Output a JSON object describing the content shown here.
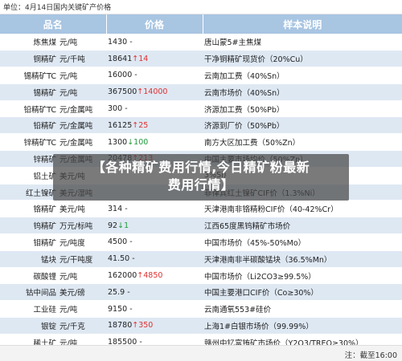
{
  "header": {
    "title": "单位：4月14日国内关键矿产价格"
  },
  "table": {
    "columns": {
      "name": "品名",
      "price": "价格",
      "desc": "样本说明"
    },
    "rows": [
      {
        "name": "炼焦煤",
        "unit": "元/吨",
        "price": "1430",
        "change": "-",
        "direction": "flat",
        "desc": "唐山蒙5#主焦煤"
      },
      {
        "name": "铜精矿",
        "unit": "元/千吨",
        "price": "18641",
        "change": "14",
        "direction": "up",
        "desc": "干净铜精矿现货价（20%Cu）"
      },
      {
        "name": "锡精矿TC",
        "unit": "元/吨",
        "price": "16000",
        "change": "-",
        "direction": "flat",
        "desc": "云南加工费（40%Sn）"
      },
      {
        "name": "锡精矿",
        "unit": "元/吨",
        "price": "367500",
        "change": "14000",
        "direction": "up",
        "desc": "云南市场价（40%Sn）"
      },
      {
        "name": "铅精矿TC",
        "unit": "元/金属吨",
        "price": "300",
        "change": "-",
        "direction": "flat",
        "desc": "济源加工费（50%Pb）"
      },
      {
        "name": "铅精矿",
        "unit": "元/金属吨",
        "price": "16125",
        "change": "25",
        "direction": "up",
        "desc": "济源到厂价（50%Pb）"
      },
      {
        "name": "锌精矿TC",
        "unit": "元/金属吨",
        "price": "1300",
        "change": "100",
        "direction": "down",
        "desc": "南方大区加工费（50%Zn）"
      },
      {
        "name": "锌精矿",
        "unit": "元/金属吨",
        "price": "20478",
        "change": "213",
        "direction": "up",
        "desc": "中国主要市场均价（50%Zn）"
      },
      {
        "name": "铝土矿",
        "unit": "美元/吨",
        "price": "",
        "change": "",
        "direction": "flat",
        "desc": "3%Si)"
      },
      {
        "name": "红土镍矿",
        "unit": "美元/湿吨",
        "price": "",
        "change": "",
        "direction": "flat",
        "desc": "菲律宾红土镍矿CIF价（1.3%Ni）"
      },
      {
        "name": "铬精矿",
        "unit": "美元/吨",
        "price": "314",
        "change": "-",
        "direction": "flat",
        "desc": "天津港南非铬精粉CIF价（40-42%Cr）"
      },
      {
        "name": "钨精矿",
        "unit": "万元/标吨",
        "price": "92",
        "change": "1",
        "direction": "down",
        "desc": "江西65度黑钨精矿市场价"
      },
      {
        "name": "钼精矿",
        "unit": "元/吨度",
        "price": "4500",
        "change": "-",
        "direction": "flat",
        "desc": "中国市场价（45%-50%Mo）"
      },
      {
        "name": "锰块",
        "unit": "元/干吨度",
        "price": "41.50",
        "change": "-",
        "direction": "flat",
        "desc": "天津港南非半碳酸锰块（36.5%Mn）"
      },
      {
        "name": "碳酸锂",
        "unit": "元/吨",
        "price": "162000",
        "change": "4850",
        "direction": "up",
        "desc": "中国市场价（Li2CO3≥99.5%）"
      },
      {
        "name": "钴中间品",
        "unit": "美元/磅",
        "price": "25.9",
        "change": "-",
        "direction": "flat",
        "desc": "中国主要港口CIF价（Co≥30%）"
      },
      {
        "name": "工业硅",
        "unit": "元/吨",
        "price": "9150",
        "change": "-",
        "direction": "flat",
        "desc": "云南通氧553#硅价"
      },
      {
        "name": "银锭",
        "unit": "元/千克",
        "price": "18780",
        "change": "350",
        "direction": "up",
        "desc": "上海1#白银市场价（99.99%）"
      },
      {
        "name": "稀土矿",
        "unit": "元/吨",
        "price": "185500",
        "change": "-",
        "direction": "flat",
        "desc": "赣州中钇富铕矿市场价（Y2O3/TREO≥30%）"
      }
    ]
  },
  "footer": {
    "note": "注：截至16:00"
  },
  "overlay": {
    "line1": "【各种精矿费用行情,今日精矿粉最新",
    "line2": "费用行情】"
  },
  "colors": {
    "header_bg": "#a8c5e2",
    "stripe": "#dee8f3",
    "up": "#e03030",
    "down": "#1f9a3a"
  }
}
